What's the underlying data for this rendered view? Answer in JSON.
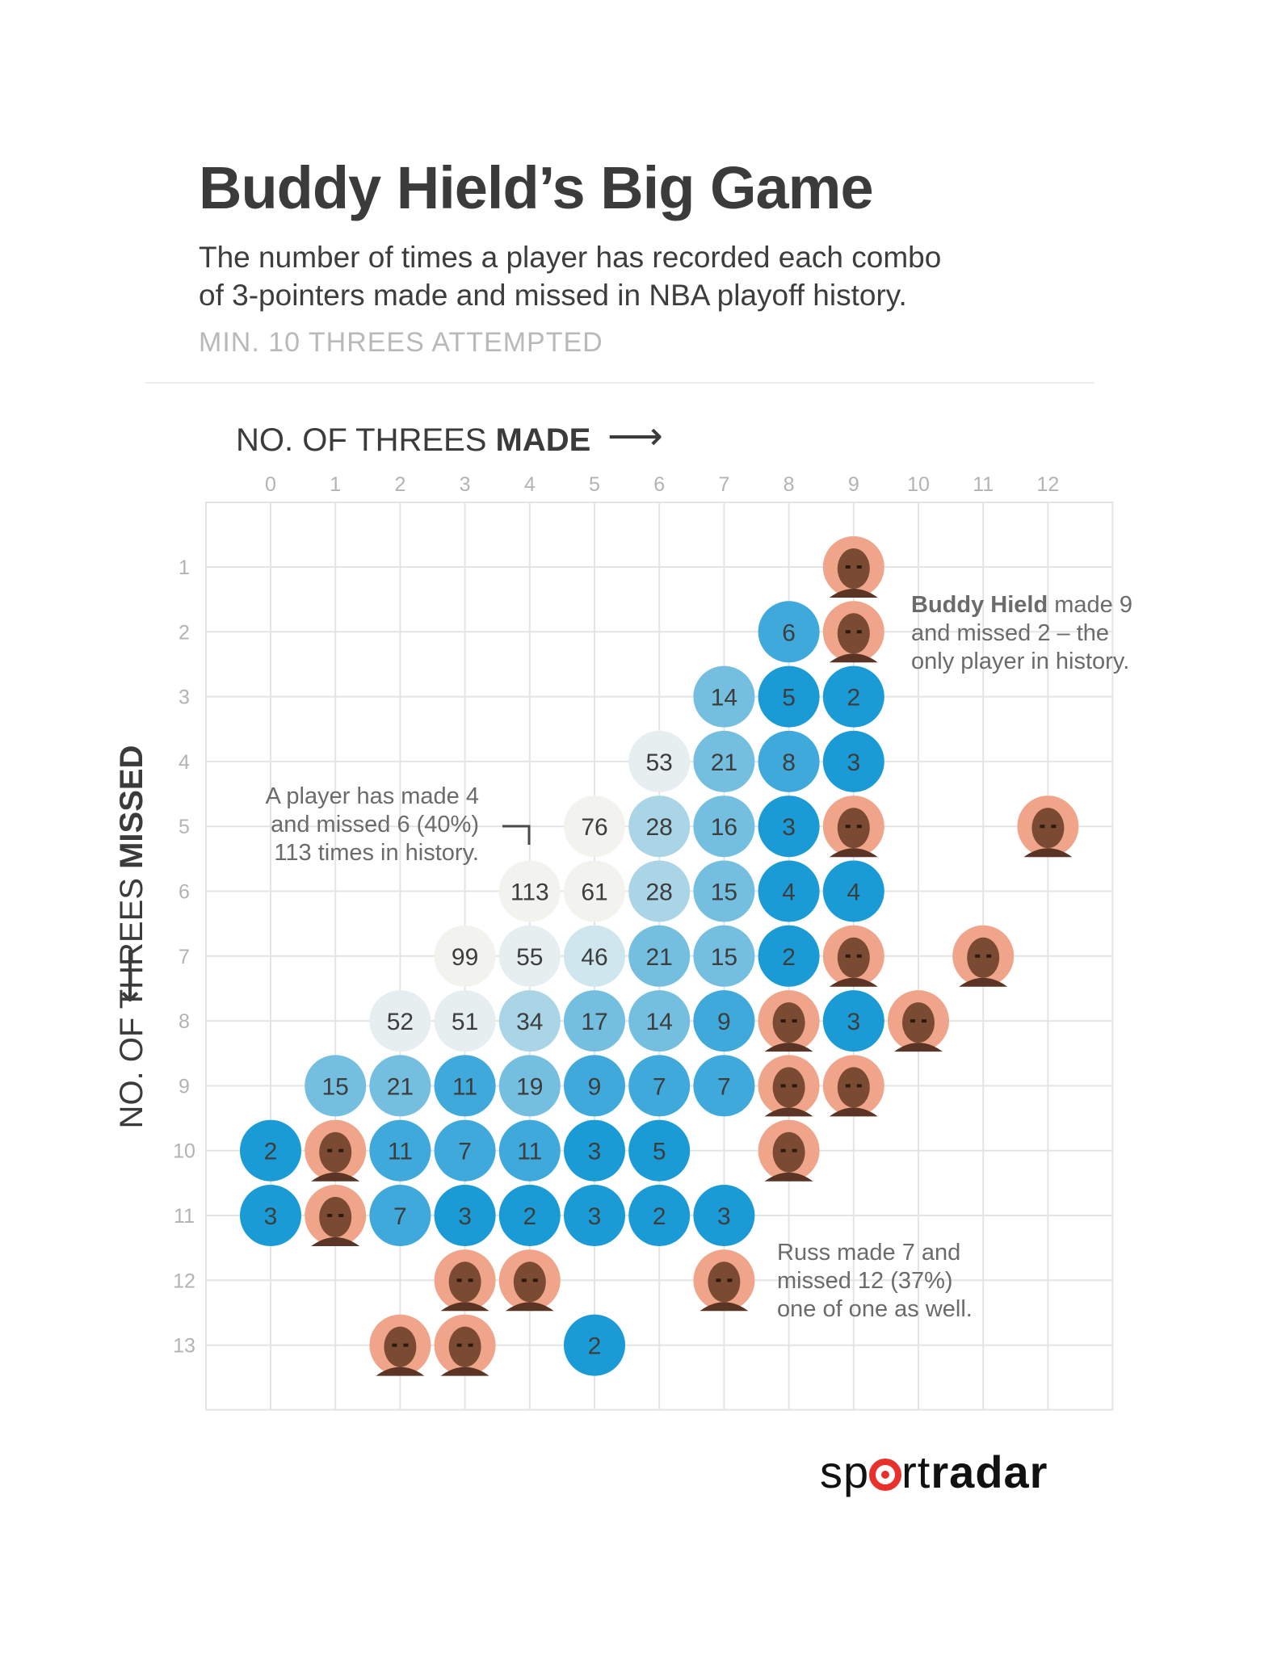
{
  "header": {
    "title": "Buddy Hield’s Big Game",
    "subtitle_line1": "The number of times a player has recorded each combo",
    "subtitle_line2": "of 3-pointers made and missed in NBA playoff history.",
    "note": "MIN. 10 THREES ATTEMPTED"
  },
  "brand": {
    "part1": "sp",
    "part2": "rt",
    "part3": "radar"
  },
  "colors": {
    "grid": "#e4e4e4",
    "scale": [
      "#f2f2ee",
      "#e6eef0",
      "#cfe6ee",
      "#a9d5e6",
      "#74bfe0",
      "#3fa9db",
      "#1a9bd6"
    ],
    "avatar": "#f0a58a"
  },
  "chart_data": {
    "type": "table",
    "x_axis_label_regular": "NO. OF THREES ",
    "x_axis_label_bold": "MADE",
    "x_axis_arrow": "⟶",
    "y_axis_label_regular": "NO. OF THREES ",
    "y_axis_label_bold": "MISSED",
    "y_axis_arrow": "⟵",
    "x_ticks": [
      "0",
      "1",
      "2",
      "3",
      "4",
      "5",
      "6",
      "7",
      "8",
      "9",
      "10",
      "11",
      "12"
    ],
    "y_ticks": [
      "1",
      "2",
      "3",
      "4",
      "5",
      "6",
      "7",
      "8",
      "9",
      "10",
      "11",
      "12",
      "13"
    ],
    "xlim": [
      0,
      12
    ],
    "ylim": [
      1,
      13
    ],
    "cells": [
      {
        "made": 8,
        "missed": 2,
        "count": 6
      },
      {
        "made": 7,
        "missed": 3,
        "count": 14
      },
      {
        "made": 8,
        "missed": 3,
        "count": 5
      },
      {
        "made": 9,
        "missed": 3,
        "count": 2
      },
      {
        "made": 6,
        "missed": 4,
        "count": 53
      },
      {
        "made": 7,
        "missed": 4,
        "count": 21
      },
      {
        "made": 8,
        "missed": 4,
        "count": 8
      },
      {
        "made": 9,
        "missed": 4,
        "count": 3
      },
      {
        "made": 5,
        "missed": 5,
        "count": 76
      },
      {
        "made": 6,
        "missed": 5,
        "count": 28
      },
      {
        "made": 7,
        "missed": 5,
        "count": 16
      },
      {
        "made": 8,
        "missed": 5,
        "count": 3
      },
      {
        "made": 4,
        "missed": 6,
        "count": 113
      },
      {
        "made": 5,
        "missed": 6,
        "count": 61
      },
      {
        "made": 6,
        "missed": 6,
        "count": 28
      },
      {
        "made": 7,
        "missed": 6,
        "count": 15
      },
      {
        "made": 8,
        "missed": 6,
        "count": 4
      },
      {
        "made": 9,
        "missed": 6,
        "count": 4
      },
      {
        "made": 3,
        "missed": 7,
        "count": 99
      },
      {
        "made": 4,
        "missed": 7,
        "count": 55
      },
      {
        "made": 5,
        "missed": 7,
        "count": 46
      },
      {
        "made": 6,
        "missed": 7,
        "count": 21
      },
      {
        "made": 7,
        "missed": 7,
        "count": 15
      },
      {
        "made": 8,
        "missed": 7,
        "count": 2
      },
      {
        "made": 2,
        "missed": 8,
        "count": 52
      },
      {
        "made": 3,
        "missed": 8,
        "count": 51
      },
      {
        "made": 4,
        "missed": 8,
        "count": 34
      },
      {
        "made": 5,
        "missed": 8,
        "count": 17
      },
      {
        "made": 6,
        "missed": 8,
        "count": 14
      },
      {
        "made": 7,
        "missed": 8,
        "count": 9
      },
      {
        "made": 9,
        "missed": 8,
        "count": 3
      },
      {
        "made": 1,
        "missed": 9,
        "count": 15
      },
      {
        "made": 2,
        "missed": 9,
        "count": 21
      },
      {
        "made": 3,
        "missed": 9,
        "count": 11
      },
      {
        "made": 4,
        "missed": 9,
        "count": 19
      },
      {
        "made": 5,
        "missed": 9,
        "count": 9
      },
      {
        "made": 6,
        "missed": 9,
        "count": 7
      },
      {
        "made": 7,
        "missed": 9,
        "count": 7
      },
      {
        "made": 0,
        "missed": 10,
        "count": 2
      },
      {
        "made": 2,
        "missed": 10,
        "count": 11
      },
      {
        "made": 3,
        "missed": 10,
        "count": 7
      },
      {
        "made": 4,
        "missed": 10,
        "count": 11
      },
      {
        "made": 5,
        "missed": 10,
        "count": 3
      },
      {
        "made": 6,
        "missed": 10,
        "count": 5
      },
      {
        "made": 0,
        "missed": 11,
        "count": 3
      },
      {
        "made": 2,
        "missed": 11,
        "count": 7
      },
      {
        "made": 3,
        "missed": 11,
        "count": 3
      },
      {
        "made": 4,
        "missed": 11,
        "count": 2
      },
      {
        "made": 5,
        "missed": 11,
        "count": 3
      },
      {
        "made": 6,
        "missed": 11,
        "count": 2
      },
      {
        "made": 7,
        "missed": 11,
        "count": 3
      },
      {
        "made": 5,
        "missed": 13,
        "count": 2
      }
    ],
    "player_photos": [
      {
        "made": 9,
        "missed": 1
      },
      {
        "made": 9,
        "missed": 2
      },
      {
        "made": 9,
        "missed": 5
      },
      {
        "made": 12,
        "missed": 5
      },
      {
        "made": 9,
        "missed": 7
      },
      {
        "made": 11,
        "missed": 7
      },
      {
        "made": 8,
        "missed": 8
      },
      {
        "made": 10,
        "missed": 8
      },
      {
        "made": 8,
        "missed": 9
      },
      {
        "made": 9,
        "missed": 9
      },
      {
        "made": 1,
        "missed": 10
      },
      {
        "made": 8,
        "missed": 10
      },
      {
        "made": 1,
        "missed": 11
      },
      {
        "made": 3,
        "missed": 12
      },
      {
        "made": 4,
        "missed": 12
      },
      {
        "made": 7,
        "missed": 12
      },
      {
        "made": 2,
        "missed": 13
      },
      {
        "made": 3,
        "missed": 13
      }
    ],
    "annotations": {
      "hield_bold": "Buddy Hield",
      "hield_line1_rest": " made 9",
      "hield_line2": "and missed 2 – the",
      "hield_line3": "only player in history.",
      "four_six_line1": "A player has made 4",
      "four_six_line2": "and missed 6 (40%)",
      "four_six_line3": "113 times in history.",
      "russ_line1": "Russ made 7 and",
      "russ_line2": "missed 12 (37%)",
      "russ_line3": "one of one as well."
    }
  }
}
